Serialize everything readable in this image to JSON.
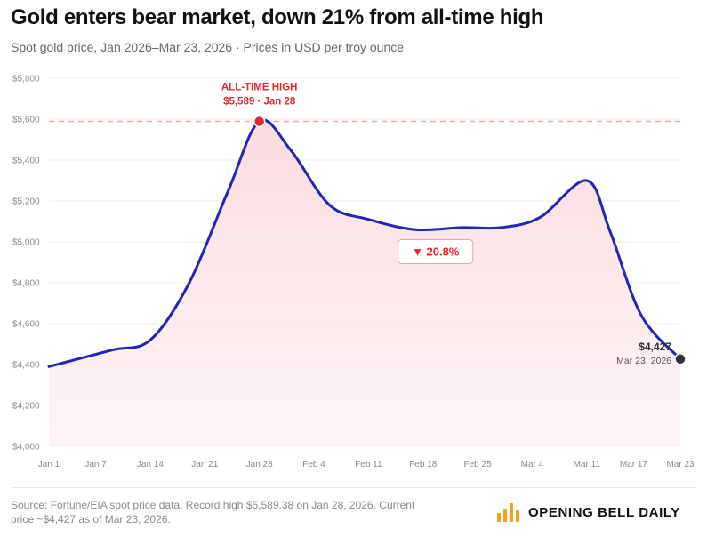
{
  "header": {
    "title": "Gold enters bear market, down 21% from all-time high",
    "subtitle": "Spot gold price, Jan 2026–Mar 23, 2026 · Prices in USD per troy ounce"
  },
  "chart_data": {
    "type": "area",
    "title": "Gold enters bear market, down 21% from all-time high",
    "subtitle": "Spot gold price, Jan 2026–Mar 23, 2026 · Prices in USD per troy ounce",
    "xlabel": "",
    "ylabel": "Prices in USD per troy ounce",
    "ylim": [
      4000,
      5800
    ],
    "grid": true,
    "yticks": [
      4000,
      4200,
      4400,
      4600,
      4800,
      5000,
      5200,
      5400,
      5600,
      5800
    ],
    "ytick_labels": [
      "$4,000",
      "$4,200",
      "$4,400",
      "$4,600",
      "$4,800",
      "$5,000",
      "$5,200",
      "$5,400",
      "$5,600",
      "$5,800"
    ],
    "xticks": [
      "Jan 1",
      "Jan 7",
      "Jan 14",
      "Jan 21",
      "Jan 28",
      "Feb 4",
      "Feb 11",
      "Feb 18",
      "Feb 25",
      "Mar 4",
      "Mar 11",
      "Mar 17",
      "Mar 23"
    ],
    "x_days": [
      0,
      6,
      13,
      20,
      27,
      34,
      41,
      48,
      55,
      62,
      69,
      75,
      81
    ],
    "series": [
      {
        "name": "Spot gold price",
        "color": "#2026b8",
        "x": [
          0,
          8,
          13,
          18,
          23,
          27,
          31,
          36,
          41,
          47,
          53,
          58,
          63,
          69,
          72,
          76,
          81
        ],
        "values": [
          4390,
          4470,
          4520,
          4800,
          5250,
          5589,
          5450,
          5180,
          5110,
          5060,
          5070,
          5070,
          5120,
          5300,
          5050,
          4640,
          4427
        ]
      }
    ],
    "reference_line": {
      "value": 5589,
      "color": "#f4a9a9"
    },
    "annotations": {
      "ath_title": "ALL-TIME HIGH",
      "ath_detail": "$5,589 · Jan 28",
      "ath_value": 5589,
      "ath_day": 27,
      "drop_label": "▼ 20.8%",
      "current_value": "$4,427",
      "current_date": "Mar 23, 2026",
      "current_price": 4427,
      "current_day": 81
    },
    "colors": {
      "line": "#2026b8",
      "fill": "#fce8ea",
      "highlight": "#e5282d",
      "endpoint": "#2e3440"
    }
  },
  "footer": {
    "source_line1": "Source: Fortune/EIA spot price data. Record high $5,589.38 on Jan 28, 2026. Current",
    "source_line2": "price ~$4,427 as of Mar 23, 2026.",
    "brand": "OPENING BELL DAILY",
    "brand_icon": "bar-chart-icon",
    "brand_color": "#f0a21a"
  }
}
